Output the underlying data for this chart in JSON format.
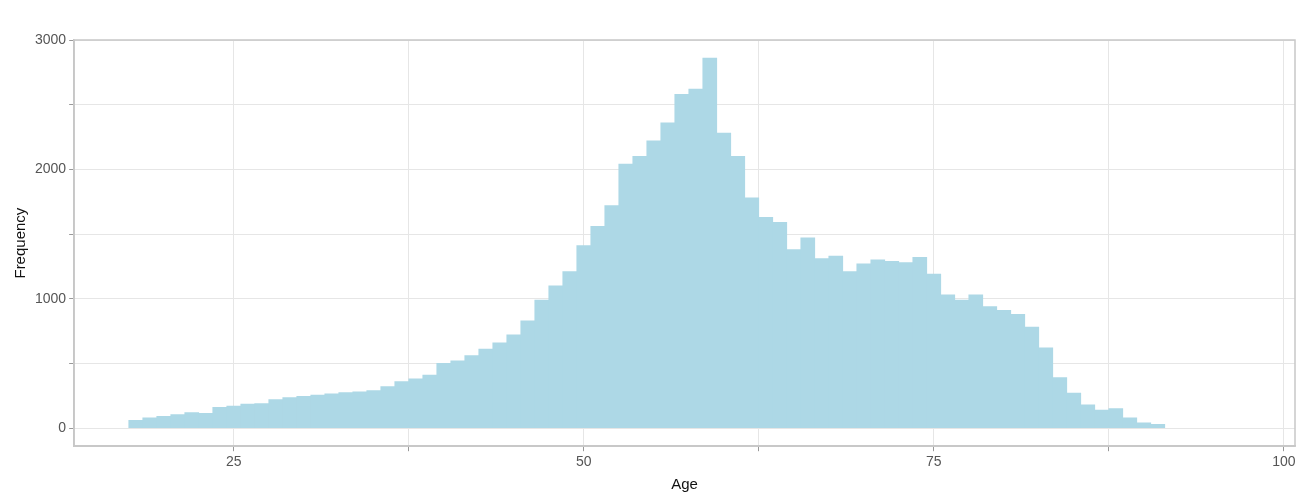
{
  "chart_data": {
    "type": "histogram",
    "xlabel": "Age",
    "ylabel": "Frequency",
    "color": "#add8e6",
    "bins": [
      17.5,
      18.5,
      19.5,
      20.5,
      21.5,
      22.5,
      23.5,
      24.5,
      25.5,
      26.5,
      27.5,
      28.5,
      29.5,
      30.5,
      31.5,
      32.5,
      33.5,
      34.5,
      35.5,
      36.5,
      37.5,
      38.5,
      39.5,
      40.5,
      41.5,
      42.5,
      43.5,
      44.5,
      45.5,
      46.5,
      47.5,
      48.5,
      49.5,
      50.5,
      51.5,
      52.5,
      53.5,
      54.5,
      55.5,
      56.5,
      57.5,
      58.5,
      59.5,
      60.5,
      61.5,
      62.5,
      63.5,
      64.5,
      65.5,
      66.5,
      67.5,
      68.5,
      69.5,
      70.5,
      71.5,
      72.5,
      73.5,
      74.5,
      75.5,
      76.5,
      77.5,
      78.5,
      79.5,
      80.5,
      81.5,
      82.5,
      83.5,
      84.5,
      85.5,
      86.5,
      87.5,
      88.5,
      89.5,
      90.5,
      91.5,
      92.5,
      93.5,
      94.5,
      95.5,
      96.5,
      97.5
    ],
    "values": [
      60,
      80,
      90,
      105,
      120,
      115,
      160,
      170,
      185,
      190,
      220,
      235,
      245,
      255,
      265,
      275,
      280,
      290,
      320,
      360,
      380,
      410,
      500,
      520,
      560,
      610,
      660,
      720,
      830,
      990,
      1100,
      1210,
      1410,
      1560,
      1720,
      2040,
      2100,
      2220,
      2360,
      2580,
      2620,
      2860,
      2280,
      2100,
      1780,
      1630,
      1590,
      1380,
      1470,
      1310,
      1330,
      1210,
      1270,
      1300,
      1290,
      1280,
      1320,
      1190,
      1030,
      990,
      1030,
      940,
      910,
      880,
      780,
      620,
      390,
      270,
      180,
      140,
      150,
      80,
      40,
      30,
      null,
      null,
      null,
      null,
      null,
      null
    ],
    "xlim": [
      13.6,
      100.8
    ],
    "xticks": [
      25,
      {
        "value": 37.5,
        "label": null
      },
      50,
      {
        "value": 62.5,
        "label": null
      },
      75,
      {
        "value": 87.5,
        "label": null
      },
      100
    ],
    "ylim": [
      -140,
      3000
    ],
    "yticks": [
      0,
      {
        "value": 500,
        "label": null
      },
      1000,
      {
        "value": 1500,
        "label": null
      },
      2000,
      {
        "value": 2500,
        "label": null
      },
      3000
    ],
    "grid": true,
    "legend": false
  }
}
